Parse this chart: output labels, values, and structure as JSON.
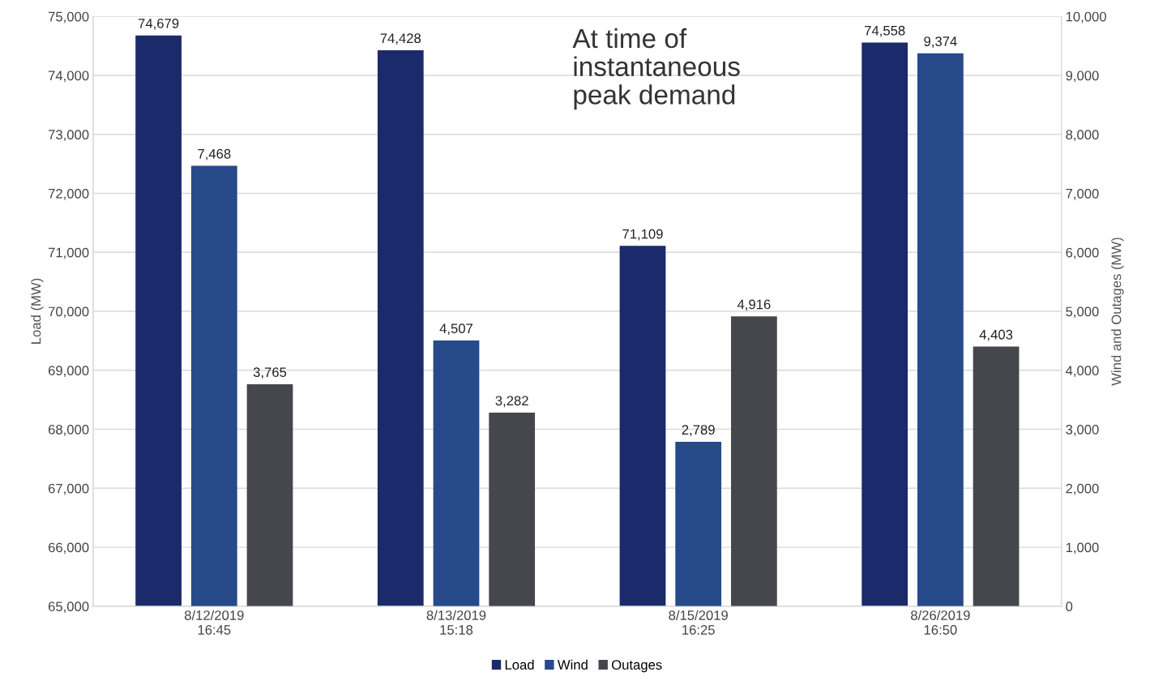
{
  "chart_data": {
    "type": "bar",
    "categories": [
      "8/12/2019\n16:45",
      "8/13/2019\n15:18",
      "8/15/2019\n16:25",
      "8/26/2019\n16:50"
    ],
    "ylabel": "Load (MW)",
    "y2label": "Wind and Outages (MW)",
    "series": [
      {
        "name": "Load",
        "color": "#1b2a6b",
        "values": [
          74679,
          74428,
          71109,
          74558
        ],
        "value_labels": [
          "74,679",
          "74,428",
          "71,109",
          "74,558"
        ]
      },
      {
        "name": "Wind",
        "color": "#264a8a",
        "values": [
          7468,
          4507,
          2789,
          9374
        ],
        "value_labels": [
          "7,468",
          "4,507",
          "2,789",
          "9,374"
        ],
        "axis": "y2"
      },
      {
        "name": "Outages",
        "color": "#45474d",
        "values": [
          3765,
          3282,
          4916,
          4403
        ],
        "value_labels": [
          "3,765",
          "3,282",
          "4,916",
          "4,403"
        ],
        "axis": "y2"
      }
    ],
    "ylim": [
      65000,
      75000
    ],
    "yticks": [
      {
        "value": 65000,
        "label": "65,000"
      },
      {
        "value": 66000,
        "label": "66,000"
      },
      {
        "value": 67000,
        "label": "67,000"
      },
      {
        "value": 68000,
        "label": "68,000"
      },
      {
        "value": 69000,
        "label": "69,000"
      },
      {
        "value": 70000,
        "label": "70,000"
      },
      {
        "value": 71000,
        "label": "71,000"
      },
      {
        "value": 72000,
        "label": "72,000"
      },
      {
        "value": 73000,
        "label": "73,000"
      },
      {
        "value": 74000,
        "label": "74,000"
      },
      {
        "value": 75000,
        "label": "75,000"
      }
    ],
    "y2lim": [
      0,
      10000
    ],
    "y2ticks": [
      0,
      {
        "value": 1000,
        "label": "1,000"
      },
      {
        "value": 2000,
        "label": "2,000"
      },
      {
        "value": 3000,
        "label": "3,000"
      },
      {
        "value": 4000,
        "label": "4,000"
      },
      {
        "value": 5000,
        "label": "5,000"
      },
      {
        "value": 6000,
        "label": "6,000"
      },
      {
        "value": 7000,
        "label": "7,000"
      },
      {
        "value": 8000,
        "label": "8,000"
      },
      {
        "value": 9000,
        "label": "9,000"
      },
      {
        "value": 10000,
        "label": "10,000"
      }
    ],
    "annotations": [
      "At time of\ninstantaneous\npeak demand"
    ],
    "grid": "y",
    "legend": "bottom"
  }
}
